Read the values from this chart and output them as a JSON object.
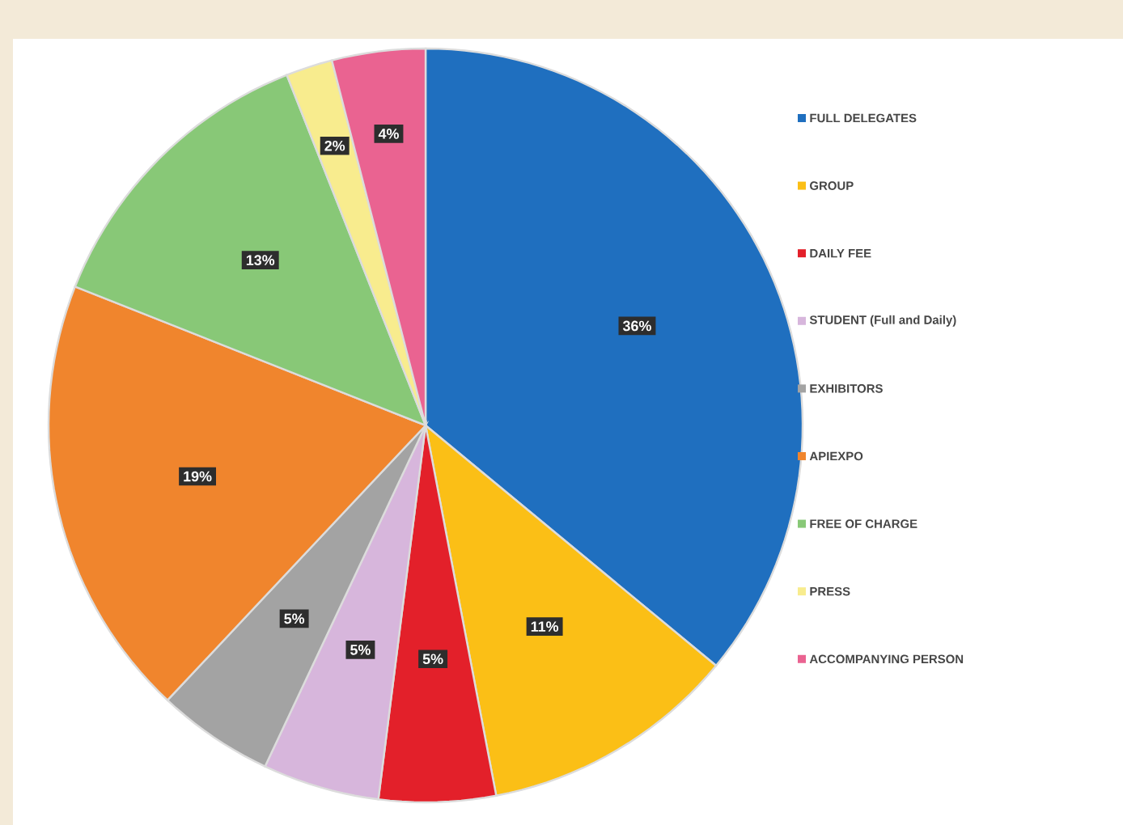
{
  "chart_data": {
    "type": "pie",
    "categories": [
      "FULL DELEGATES",
      "GROUP",
      "DAILY FEE",
      "STUDENT (Full and Daily)",
      "EXHIBITORS",
      "APIEXPO",
      "FREE OF CHARGE",
      "PRESS",
      "ACCOMPANYING PERSON"
    ],
    "values": [
      36,
      11,
      5,
      5,
      5,
      19,
      13,
      2,
      4
    ],
    "value_labels": [
      "36%",
      "11%",
      "5%",
      "5%",
      "5%",
      "19%",
      "13%",
      "2%",
      "4%"
    ],
    "colors": [
      "#1f6fbf",
      "#fbbf16",
      "#e3202a",
      "#d7b6dc",
      "#a3a3a3",
      "#f0852d",
      "#88c877",
      "#f8ec8e",
      "#ea6391"
    ],
    "legend": "right"
  }
}
